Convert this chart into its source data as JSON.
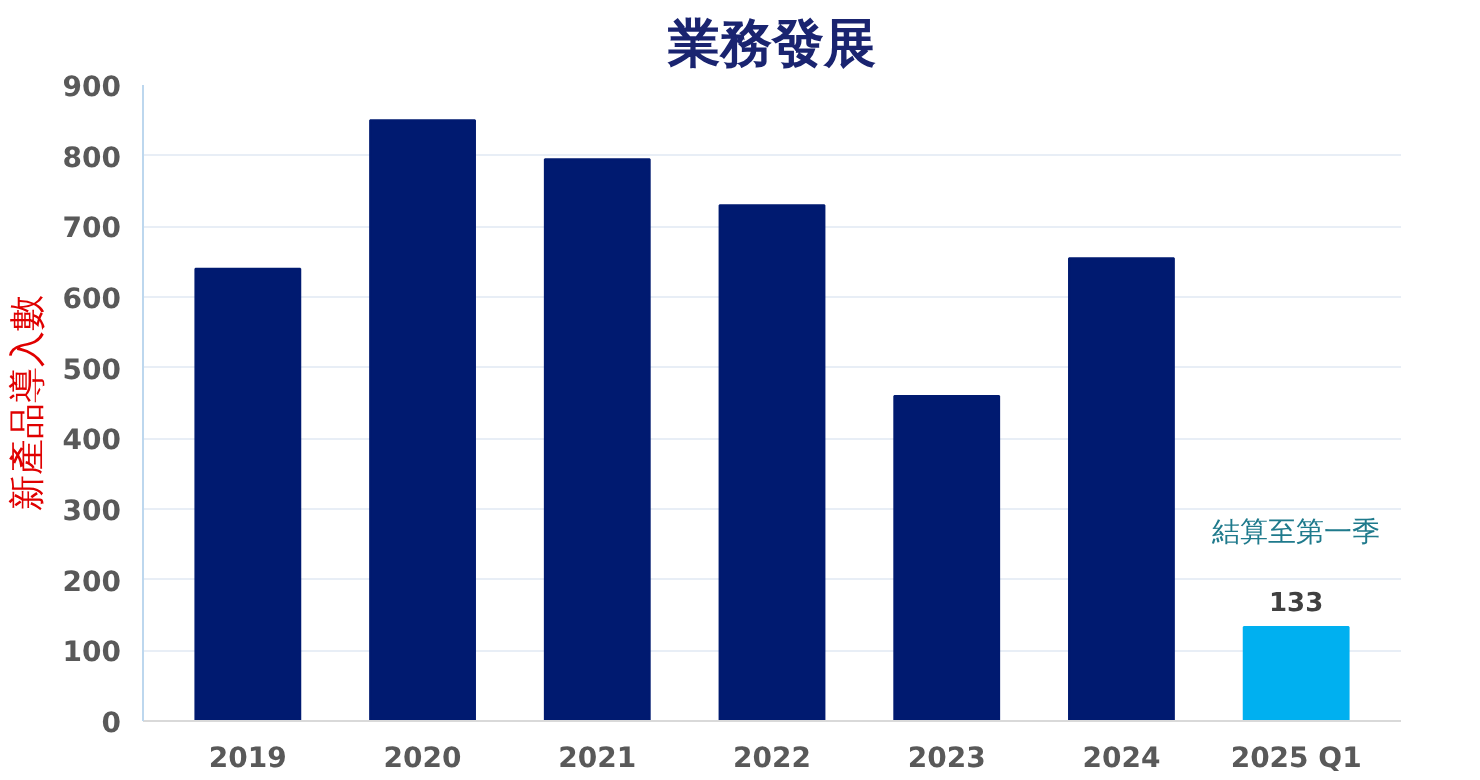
{
  "chart_data": {
    "type": "bar",
    "title": "業務發展",
    "ylabel": "新產品導入數",
    "categories": [
      "2019",
      "2020",
      "2021",
      "2022",
      "2023",
      "2024",
      "2025 Q1"
    ],
    "values": [
      640,
      850,
      795,
      730,
      460,
      655,
      133
    ],
    "colors": [
      "#001a70",
      "#001a70",
      "#001a70",
      "#001a70",
      "#001a70",
      "#001a70",
      "#00b0f0"
    ],
    "value_labels": [
      null,
      null,
      null,
      null,
      null,
      null,
      "133"
    ],
    "annotations": [
      "結算至第一季"
    ],
    "ylim": [
      0,
      900
    ],
    "yticks": [
      0,
      100,
      200,
      300,
      400,
      500,
      600,
      700,
      800,
      900
    ],
    "grid": "y"
  }
}
